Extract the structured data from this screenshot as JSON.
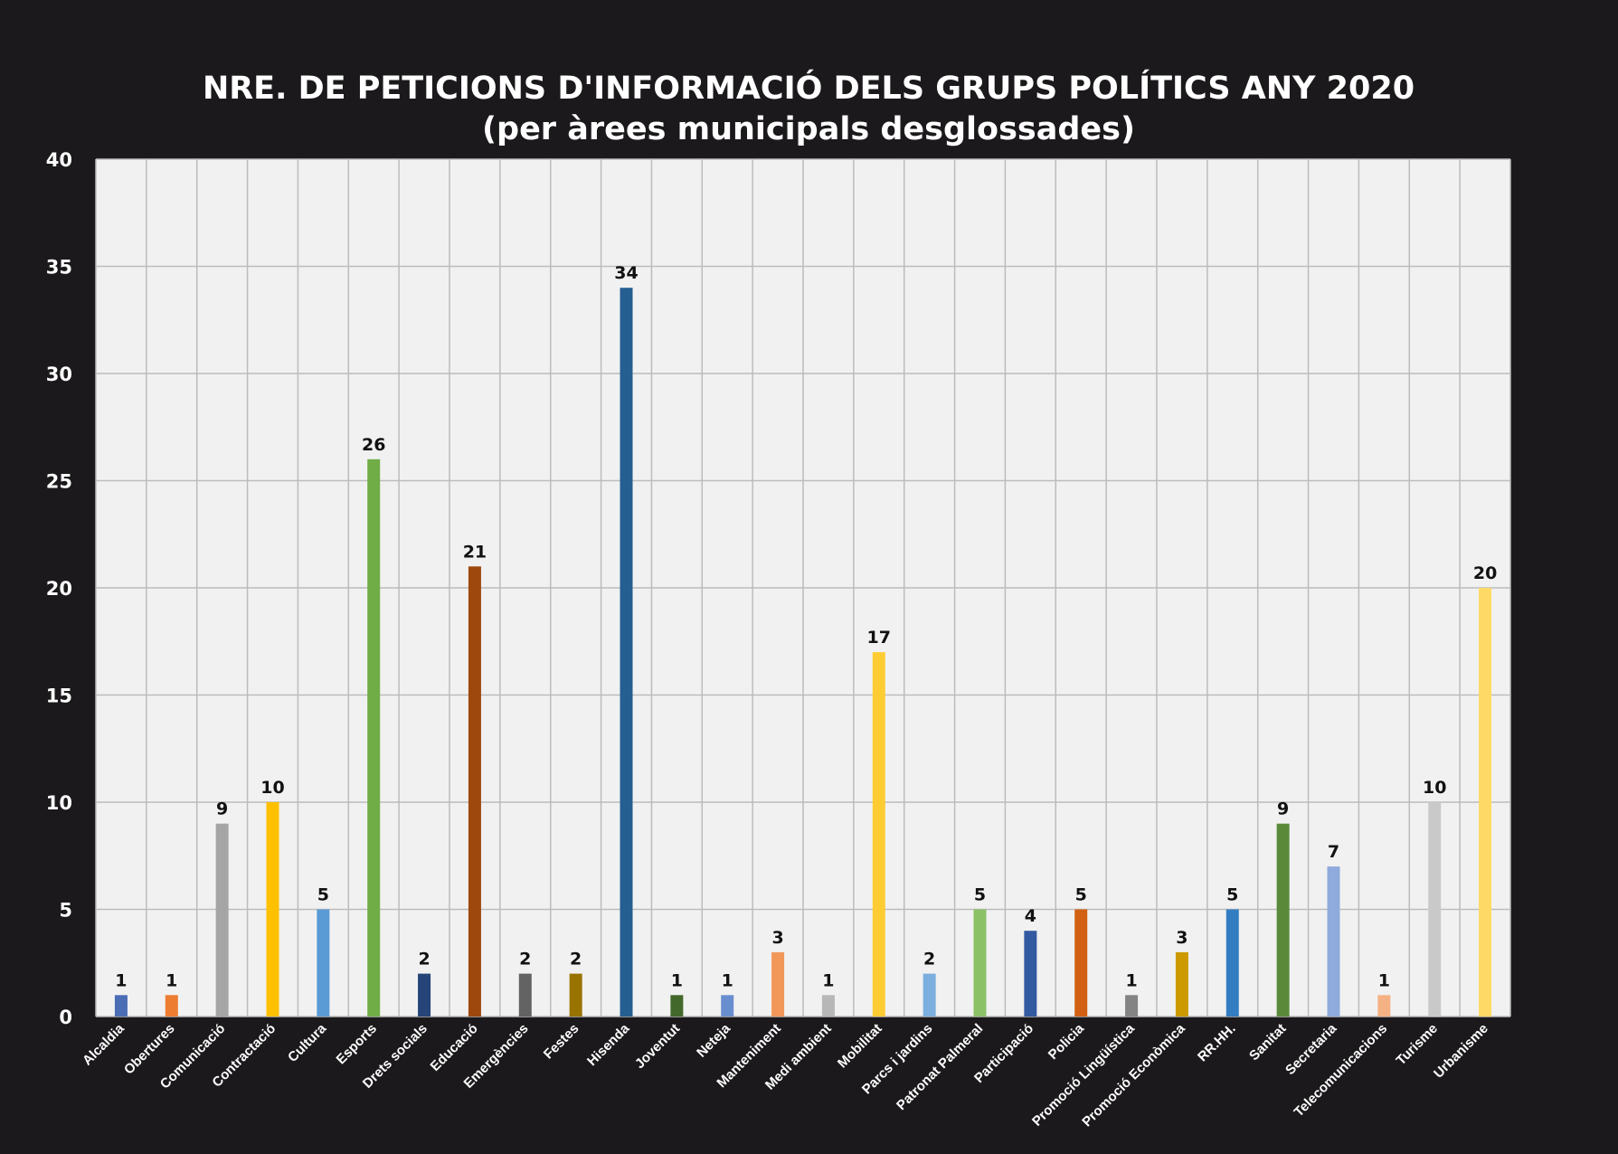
{
  "chart_data": {
    "type": "bar",
    "title": "NRE. DE PETICIONS D'INFORMACIÓ DELS GRUPS POLÍTICS ANY 2020",
    "subtitle": "(per àrees municipals desglossades)",
    "xlabel": "",
    "ylabel": "",
    "ylim": [
      0,
      40
    ],
    "yticks": [
      "0",
      "5",
      "10",
      "15",
      "20",
      "25",
      "30",
      "35",
      "40"
    ],
    "grid": true,
    "legend": "none",
    "categories": [
      "Alcaldia",
      "Obertures",
      "Comunicació",
      "Contractació",
      "Cultura",
      "Esports",
      "Drets socials",
      "Educació",
      "Emergències",
      "Festes",
      "Hisenda",
      "Joventut",
      "Neteja",
      "Manteniment",
      "Medi ambient",
      "Mobilitat",
      "Parcs i jardins",
      "Patronat Palmeral",
      "Participació",
      "Policia",
      "Promoció Lingüística",
      "Promoció Econòmica",
      "RR.HH.",
      "Sanitat",
      "Secretaria",
      "Telecomunicacions",
      "Turisme",
      "Urbanisme"
    ],
    "values": [
      1,
      1,
      9,
      10,
      5,
      26,
      2,
      21,
      2,
      2,
      34,
      1,
      1,
      3,
      1,
      17,
      2,
      5,
      4,
      5,
      1,
      3,
      5,
      9,
      7,
      1,
      10,
      20
    ],
    "data_labels": [
      "1",
      "1",
      "9",
      "10",
      "5",
      "26",
      "2",
      "21",
      "2",
      "2",
      "34",
      "1",
      "1",
      "3",
      "1",
      "17",
      "2",
      "5",
      "4",
      "5",
      "1",
      "3",
      "5",
      "9",
      "7",
      "1",
      "10",
      "20"
    ],
    "colors": [
      "#4a6db5",
      "#ed7d31",
      "#a5a5a5",
      "#ffc000",
      "#5b9bd5",
      "#70ad47",
      "#264478",
      "#9e480e",
      "#636363",
      "#997300",
      "#255e91",
      "#43682b",
      "#698ed0",
      "#f1975a",
      "#b7b7b7",
      "#ffcd33",
      "#7cafdd",
      "#8cc168",
      "#335aa1",
      "#d26012",
      "#848484",
      "#cc9a00",
      "#327dc2",
      "#5a8a39",
      "#8faadc",
      "#f4b183",
      "#c9c9c9",
      "#ffd966"
    ],
    "background": "#1b191b",
    "plot_background": "#f1f1f1",
    "grid_color": "#bcbcbc"
  }
}
